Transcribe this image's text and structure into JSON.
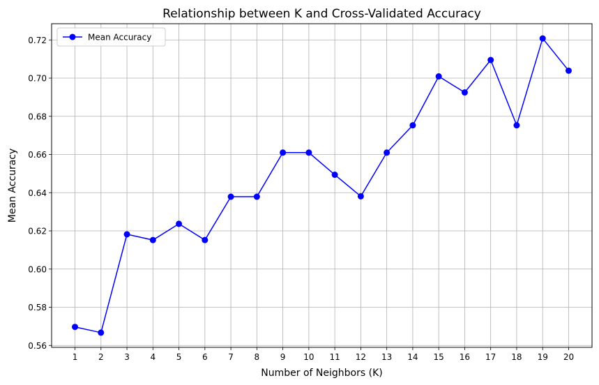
{
  "chart_data": {
    "type": "line",
    "title": "Relationship between K and Cross-Validated Accuracy",
    "xlabel": "Number of Neighbors (K)",
    "ylabel": "Mean Accuracy",
    "x": [
      1,
      2,
      3,
      4,
      5,
      6,
      7,
      8,
      9,
      10,
      11,
      12,
      13,
      14,
      15,
      16,
      17,
      18,
      19,
      20
    ],
    "series": [
      {
        "name": "Mean Accuracy",
        "color": "#0000ff",
        "marker": "circle",
        "values": [
          0.5697,
          0.5667,
          0.6182,
          0.6152,
          0.6237,
          0.6152,
          0.6379,
          0.6379,
          0.661,
          0.661,
          0.6494,
          0.6381,
          0.661,
          0.6753,
          0.7009,
          0.6925,
          0.7095,
          0.6753,
          0.7208,
          0.7039
        ]
      }
    ],
    "xlim": [
      0.1,
      20.9
    ],
    "ylim": [
      0.559,
      0.7285
    ],
    "xticks": [
      "1",
      "2",
      "3",
      "4",
      "5",
      "6",
      "7",
      "8",
      "9",
      "10",
      "11",
      "12",
      "13",
      "14",
      "15",
      "16",
      "17",
      "18",
      "19",
      "20"
    ],
    "yticks": [
      "0.56",
      "0.58",
      "0.60",
      "0.62",
      "0.64",
      "0.66",
      "0.68",
      "0.70",
      "0.72"
    ],
    "grid": true,
    "legend_position": "top-left"
  }
}
